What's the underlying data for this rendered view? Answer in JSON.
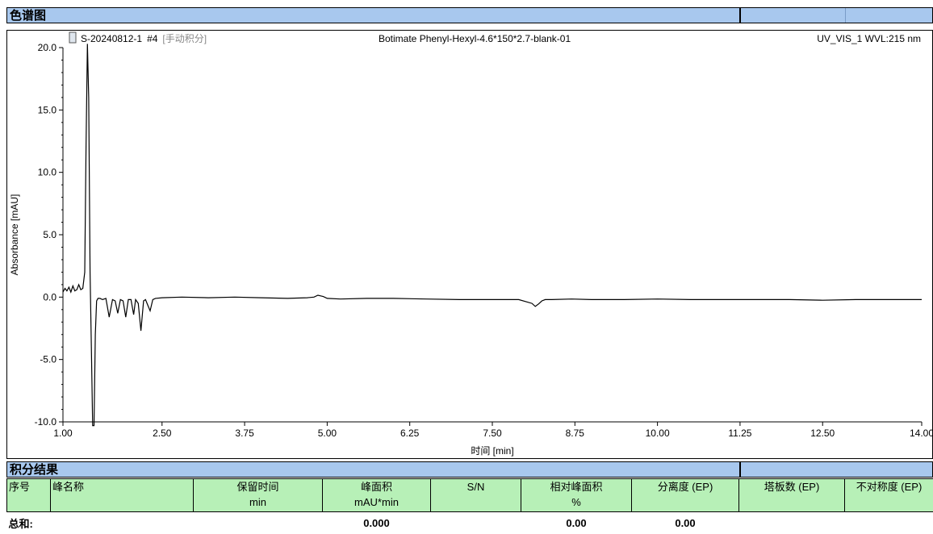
{
  "sections": {
    "chromatogram_title": "色谱图",
    "integration_title": "积分结果"
  },
  "chart_header": {
    "sample": "S-20240812-1",
    "injection": "#4",
    "mode": "[手动积分]",
    "method": "Botimate Phenyl-Hexyl-4.6*150*2.7-blank-01",
    "channel": "UV_VIS_1 WVL:215 nm"
  },
  "chart_data": {
    "type": "line",
    "title": "",
    "xlabel": "时间 [min]",
    "ylabel": "Absorbance [mAU]",
    "xlim": [
      1.0,
      14.0
    ],
    "ylim": [
      -10.0,
      20.0
    ],
    "x_ticks": [
      "1.00",
      "2.50",
      "3.75",
      "5.00",
      "6.25",
      "7.50",
      "8.75",
      "10.00",
      "11.25",
      "12.50",
      "14.00"
    ],
    "x_tick_values": [
      1.0,
      2.5,
      3.75,
      5.0,
      6.25,
      7.5,
      8.75,
      10.0,
      11.25,
      12.5,
      14.0
    ],
    "y_ticks": [
      "-10.0",
      "-5.0",
      "0.0",
      "5.0",
      "10.0",
      "15.0",
      "20.0"
    ],
    "y_tick_values": [
      -10,
      -5,
      0,
      5,
      10,
      15,
      20
    ],
    "series": [
      {
        "x": [
          1.0,
          1.03,
          1.06,
          1.09,
          1.12,
          1.15,
          1.18,
          1.21,
          1.24,
          1.27,
          1.3,
          1.33,
          1.35,
          1.37,
          1.39,
          1.41,
          1.43,
          1.45,
          1.47,
          1.49,
          1.51,
          1.53,
          1.56,
          1.6,
          1.65,
          1.7,
          1.75,
          1.79,
          1.83,
          1.87,
          1.91,
          1.95,
          1.99,
          2.03,
          2.07,
          2.1,
          2.14,
          2.18,
          2.22,
          2.25,
          2.28,
          2.32,
          2.36,
          2.4,
          2.5,
          2.8,
          3.2,
          3.6,
          4.0,
          4.4,
          4.7,
          4.8,
          4.86,
          4.9,
          4.94,
          5.0,
          5.2,
          5.6,
          6.0,
          6.5,
          7.0,
          7.5,
          7.9,
          8.1,
          8.15,
          8.2,
          8.25,
          8.3,
          8.4,
          8.7,
          9.0,
          9.5,
          10.0,
          10.5,
          11.0,
          11.5,
          12.0,
          12.5,
          13.0,
          13.5,
          14.0
        ],
        "y": [
          0.4,
          0.7,
          0.5,
          0.8,
          0.4,
          0.9,
          0.5,
          0.6,
          1.0,
          0.6,
          0.7,
          2.0,
          12.0,
          22.0,
          16.0,
          2.0,
          -4.0,
          -10.5,
          -10.5,
          -3.0,
          -0.3,
          -0.1,
          -0.1,
          -0.2,
          -0.1,
          -1.6,
          -0.2,
          -0.3,
          -1.3,
          -0.2,
          -0.3,
          -1.6,
          -0.2,
          -0.2,
          -1.4,
          -0.2,
          -0.5,
          -2.7,
          -0.3,
          -0.2,
          -0.6,
          -1.1,
          -0.2,
          -0.1,
          -0.05,
          0.0,
          -0.05,
          0.0,
          -0.05,
          -0.1,
          -0.05,
          0.0,
          0.15,
          0.1,
          0.05,
          -0.1,
          -0.15,
          -0.1,
          -0.1,
          -0.15,
          -0.2,
          -0.2,
          -0.2,
          -0.5,
          -0.75,
          -0.55,
          -0.3,
          -0.2,
          -0.2,
          -0.15,
          -0.2,
          -0.2,
          -0.15,
          -0.2,
          -0.2,
          -0.2,
          -0.2,
          -0.25,
          -0.2,
          -0.2,
          -0.2
        ]
      }
    ]
  },
  "results_table": {
    "columns": [
      {
        "label": "序号",
        "unit": ""
      },
      {
        "label": "峰名称",
        "unit": ""
      },
      {
        "label": "保留时间",
        "unit": "min"
      },
      {
        "label": "峰面积",
        "unit": "mAU*min"
      },
      {
        "label": "S/N",
        "unit": ""
      },
      {
        "label": "相对峰面积",
        "unit": "%"
      },
      {
        "label": "分离度 (EP)",
        "unit": ""
      },
      {
        "label": "塔板数 (EP)",
        "unit": ""
      },
      {
        "label": "不对称度 (EP)",
        "unit": ""
      }
    ],
    "total_row": {
      "label": "总和:",
      "area": "0.000",
      "relative_area": "0.00",
      "resolution": "0.00"
    }
  },
  "colors": {
    "section_bar": "#a8c8ee",
    "table_header": "#b7f0b7",
    "trace": "#000000"
  }
}
